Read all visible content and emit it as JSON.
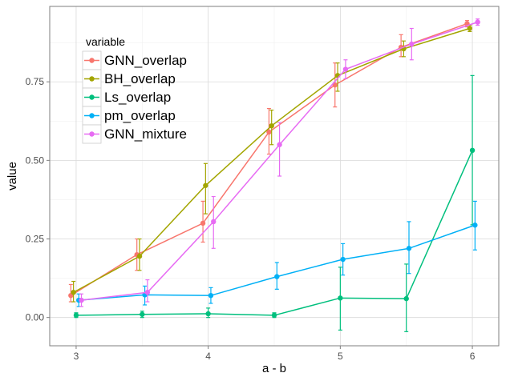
{
  "chart_data": {
    "type": "line",
    "xlabel": "a - b",
    "ylabel": "value",
    "xlim": [
      2.8,
      6.2
    ],
    "ylim": [
      -0.09,
      0.99
    ],
    "xticks": [
      3,
      4,
      5,
      6
    ],
    "xtick_labels": [
      "3",
      "4",
      "5",
      "6"
    ],
    "yticks": [
      0.0,
      0.25,
      0.5,
      0.75
    ],
    "ytick_labels": [
      "0.00",
      "0.25",
      "0.50",
      "0.75"
    ],
    "grid": true,
    "legend": {
      "title": "variable",
      "placement": "top-left"
    },
    "x": [
      3,
      3.5,
      4,
      4.5,
      5,
      5.5,
      6
    ],
    "series": [
      {
        "name": "GNN_overlap",
        "color": "#F8766D",
        "values": [
          0.07,
          0.2,
          0.3,
          0.59,
          0.74,
          0.86,
          0.935
        ],
        "err_low": [
          0.05,
          0.15,
          0.24,
          0.52,
          0.67,
          0.83,
          0.925
        ],
        "err_high": [
          0.105,
          0.25,
          0.37,
          0.665,
          0.81,
          0.9,
          0.945
        ]
      },
      {
        "name": "BH_overlap",
        "color": "#A3A500",
        "values": [
          0.08,
          0.195,
          0.42,
          0.61,
          0.77,
          0.855,
          0.92
        ],
        "err_low": [
          0.05,
          0.15,
          0.33,
          0.55,
          0.72,
          0.83,
          0.91
        ],
        "err_high": [
          0.115,
          0.25,
          0.49,
          0.66,
          0.81,
          0.88,
          0.93
        ]
      },
      {
        "name": "Ls_overlap",
        "color": "#00BF7D",
        "values": [
          0.007,
          0.01,
          0.012,
          0.007,
          0.062,
          0.06,
          0.532
        ],
        "err_low": [
          0.0,
          0.0,
          0.0,
          0.0,
          -0.04,
          -0.045,
          0.295
        ],
        "err_high": [
          0.015,
          0.02,
          0.03,
          0.015,
          0.16,
          0.17,
          0.77
        ]
      },
      {
        "name": "pm_overlap",
        "color": "#00B0F6",
        "values": [
          0.055,
          0.072,
          0.07,
          0.13,
          0.185,
          0.22,
          0.294
        ],
        "err_low": [
          0.035,
          0.04,
          0.045,
          0.09,
          0.135,
          0.14,
          0.215
        ],
        "err_high": [
          0.075,
          0.1,
          0.095,
          0.175,
          0.235,
          0.305,
          0.37
        ]
      },
      {
        "name": "GNN_mixture",
        "color": "#E76BF3",
        "values": [
          0.055,
          0.08,
          0.305,
          0.55,
          0.79,
          0.87,
          0.94
        ],
        "err_low": [
          0.035,
          0.05,
          0.22,
          0.45,
          0.76,
          0.82,
          0.93
        ],
        "err_high": [
          0.075,
          0.12,
          0.385,
          0.62,
          0.82,
          0.92,
          0.95
        ]
      }
    ]
  }
}
